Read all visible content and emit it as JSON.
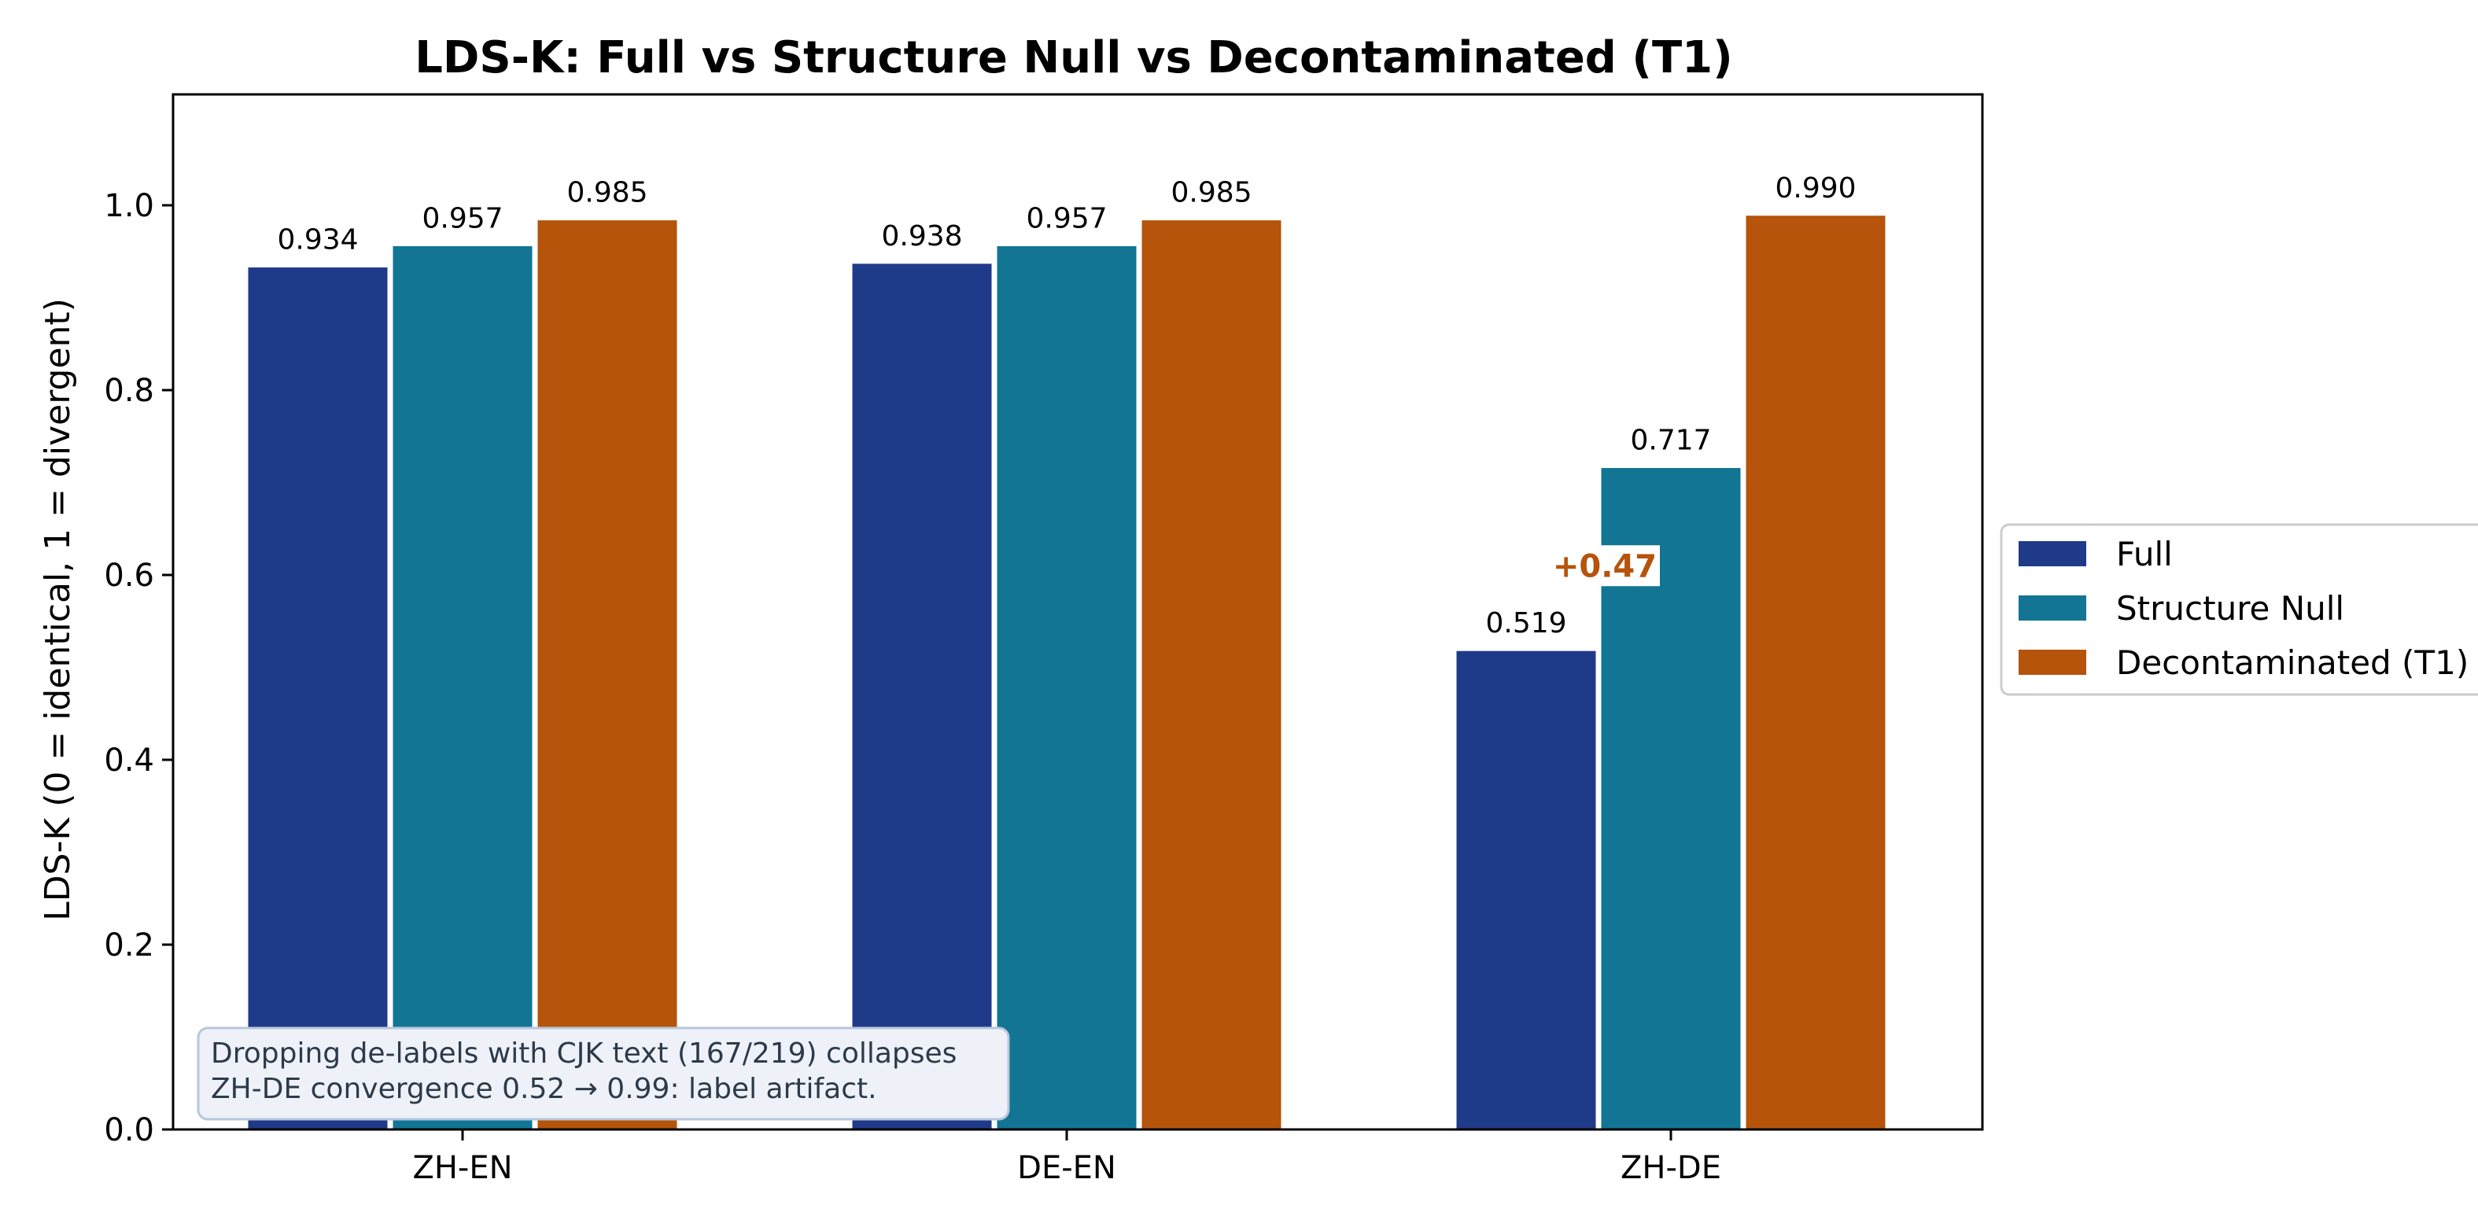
{
  "chart_data": {
    "type": "bar",
    "title": "LDS-K: Full vs Structure Null vs Decontaminated (T1)",
    "xlabel": "",
    "ylabel": "LDS-K (0 = identical, 1 = divergent)",
    "categories": [
      "ZH-EN",
      "DE-EN",
      "ZH-DE"
    ],
    "ylim": [
      0,
      1.12
    ],
    "yticks": [
      0.0,
      0.2,
      0.4,
      0.6,
      0.8,
      1.0
    ],
    "yticklabels": [
      "0.0",
      "0.2",
      "0.4",
      "0.6",
      "0.8",
      "1.0"
    ],
    "series": [
      {
        "name": "Full",
        "color": "#1f3a89",
        "values": [
          0.934,
          0.938,
          0.519
        ],
        "labels": [
          "0.934",
          "0.938",
          "0.519"
        ]
      },
      {
        "name": "Structure Null",
        "color": "#117593",
        "values": [
          0.957,
          0.957,
          0.717
        ],
        "labels": [
          "0.957",
          "0.957",
          "0.717"
        ]
      },
      {
        "name": "Decontaminated (T1)",
        "color": "#b5540a",
        "values": [
          0.985,
          0.985,
          0.99
        ],
        "labels": [
          "0.985",
          "0.985",
          "0.990"
        ]
      }
    ],
    "grid": false,
    "legend": "outside-right",
    "annotations": [
      {
        "text": "+0.47",
        "category": "ZH-DE",
        "y": 0.61,
        "color": "#b5540a"
      }
    ],
    "note": {
      "line1": "Dropping de-labels with CJK text (167/219) collapses",
      "line2": "ZH-DE convergence 0.52 → 0.99: label artifact."
    }
  }
}
